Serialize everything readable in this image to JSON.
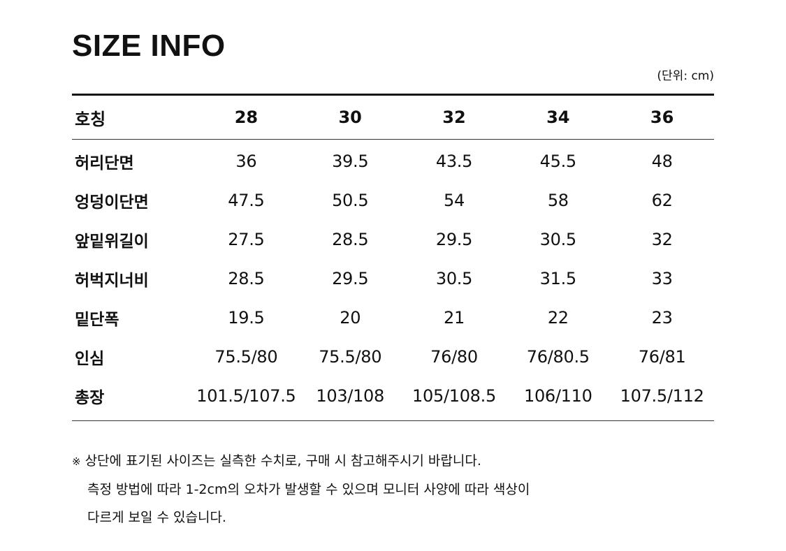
{
  "title": "SIZE INFO",
  "unit_note": "(단위: cm)",
  "table": {
    "header_label": "호칭",
    "sizes": [
      "28",
      "30",
      "32",
      "34",
      "36"
    ],
    "rows": [
      {
        "label": "허리단면",
        "values": [
          "36",
          "39.5",
          "43.5",
          "45.5",
          "48"
        ]
      },
      {
        "label": "엉덩이단면",
        "values": [
          "47.5",
          "50.5",
          "54",
          "58",
          "62"
        ]
      },
      {
        "label": "앞밑위길이",
        "values": [
          "27.5",
          "28.5",
          "29.5",
          "30.5",
          "32"
        ]
      },
      {
        "label": "허벅지너비",
        "values": [
          "28.5",
          "29.5",
          "30.5",
          "31.5",
          "33"
        ]
      },
      {
        "label": "밑단폭",
        "values": [
          "19.5",
          "20",
          "21",
          "22",
          "23"
        ]
      },
      {
        "label": "인심",
        "values": [
          "75.5/80",
          "75.5/80",
          "76/80",
          "76/80.5",
          "76/81"
        ]
      },
      {
        "label": "총장",
        "values": [
          "101.5/107.5",
          "103/108",
          "105/108.5",
          "106/110",
          "107.5/112"
        ]
      }
    ]
  },
  "notes": {
    "mark": "※",
    "lines": [
      "상단에 표기된 사이즈는 실측한 수치로, 구매 시 참고해주시기 바랍니다.",
      "측정 방법에 따라 1-2cm의 오차가 발생할 수 있으며 모니터 사양에 따라 색상이",
      "다르게 보일 수 있습니다."
    ]
  }
}
